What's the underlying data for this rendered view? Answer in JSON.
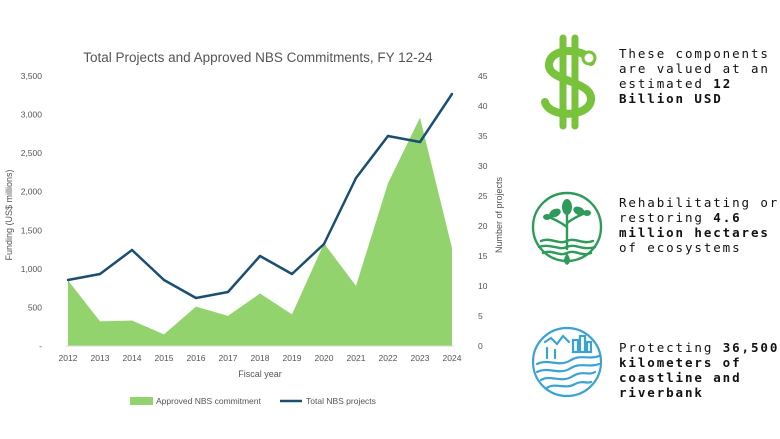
{
  "chart_data": {
    "type": "area+line",
    "title": "Total Projects and Approved NBS Commitments, FY 12-24",
    "xlabel": "Fiscal year",
    "ylabel_left": "Funding (US$ millions)",
    "ylabel_right": "Number of projects",
    "categories": [
      "2012",
      "2013",
      "2014",
      "2015",
      "2016",
      "2017",
      "2018",
      "2019",
      "2020",
      "2021",
      "2022",
      "2023",
      "2024"
    ],
    "y_left_ticks": [
      "-",
      "500",
      "1,000",
      "1,500",
      "2,000",
      "2,500",
      "3,000",
      "3,500"
    ],
    "y_left_lim": [
      0,
      3500
    ],
    "y_right_ticks": [
      "0",
      "5",
      "10",
      "15",
      "20",
      "25",
      "30",
      "35",
      "40",
      "45"
    ],
    "y_right_lim": [
      0,
      45
    ],
    "series": [
      {
        "name": "Approved NBS commitment",
        "type": "area",
        "axis": "left",
        "color": "#92d36e",
        "values": [
          850,
          320,
          330,
          150,
          510,
          390,
          680,
          410,
          1330,
          780,
          2110,
          2960,
          1270
        ]
      },
      {
        "name": "Total NBS projects",
        "type": "line",
        "axis": "right",
        "color": "#1b4f72",
        "values": [
          11,
          12,
          16,
          11,
          8,
          9,
          15,
          12,
          17,
          28,
          35,
          34,
          42
        ]
      }
    ],
    "legend_position": "bottom",
    "grid": false
  },
  "info": [
    {
      "icon": "dollar-sign-icon",
      "pre": "These components are valued at an estimated ",
      "bold": "12 Billion USD",
      "post": ""
    },
    {
      "icon": "ecosystem-tree-icon",
      "pre": "Rehabilitating or restoring ",
      "bold": "4.6 million hectares",
      "post": " of ecosystems"
    },
    {
      "icon": "coastline-icon",
      "pre": "Protecting ",
      "bold": "36,500 kilometers of coastline and riverbank",
      "post": ""
    }
  ]
}
